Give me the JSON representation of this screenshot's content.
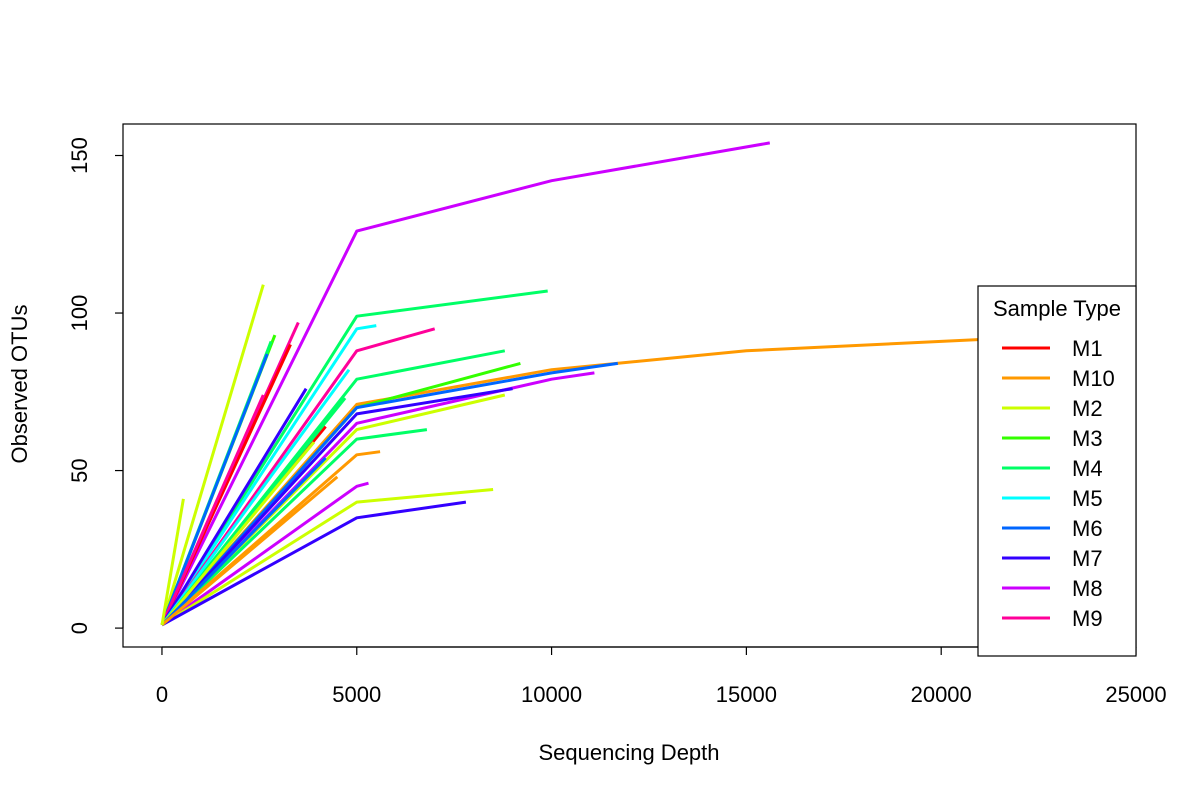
{
  "chart_data": {
    "type": "line",
    "title": "",
    "xlabel": "Sequencing Depth",
    "ylabel": "Observed OTUs",
    "xlim": [
      -1000,
      25000
    ],
    "ylim": [
      -6,
      160
    ],
    "x_ticks": [
      0,
      5000,
      10000,
      15000,
      20000,
      25000
    ],
    "x_tick_labels": [
      "0",
      "5000",
      "10000",
      "15000",
      "20000",
      "25000"
    ],
    "y_ticks": [
      0,
      50,
      100,
      150
    ],
    "y_tick_labels": [
      "0",
      "50",
      "100",
      "150"
    ],
    "grid": false,
    "legend": {
      "title": "Sample Type",
      "placement": "right",
      "entries": [
        "M1",
        "M10",
        "M2",
        "M3",
        "M4",
        "M5",
        "M6",
        "M7",
        "M8",
        "M9"
      ]
    },
    "group_colors": {
      "M1": "#FF0000",
      "M10": "#FF9900",
      "M2": "#CCFF00",
      "M3": "#33FF00",
      "M4": "#00FF66",
      "M5": "#00FFFF",
      "M6": "#0066FF",
      "M7": "#3300FF",
      "M8": "#CC00FF",
      "M9": "#FF0099"
    },
    "series": [
      {
        "group": "M8",
        "x": [
          0,
          5000,
          10000,
          15600
        ],
        "y": [
          1,
          126,
          142,
          154
        ]
      },
      {
        "group": "M10",
        "x": [
          0,
          5000,
          10000,
          15000,
          20000,
          25000
        ],
        "y": [
          1,
          71,
          82,
          88,
          91,
          94
        ]
      },
      {
        "group": "M4",
        "x": [
          0,
          5000,
          9900
        ],
        "y": [
          1,
          99,
          107
        ]
      },
      {
        "group": "M5",
        "x": [
          0,
          5000,
          5500
        ],
        "y": [
          1,
          95,
          96
        ]
      },
      {
        "group": "M9",
        "x": [
          0,
          5000,
          7000
        ],
        "y": [
          1,
          88,
          95
        ]
      },
      {
        "group": "M4",
        "x": [
          0,
          5000,
          8800
        ],
        "y": [
          1,
          79,
          88
        ]
      },
      {
        "group": "M3",
        "x": [
          0,
          5000,
          9200
        ],
        "y": [
          1,
          70,
          84
        ]
      },
      {
        "group": "M6",
        "x": [
          0,
          5000,
          10000,
          11700
        ],
        "y": [
          1,
          70,
          81,
          84
        ]
      },
      {
        "group": "M8",
        "x": [
          0,
          5000,
          10000,
          11100
        ],
        "y": [
          1,
          65,
          79,
          81
        ]
      },
      {
        "group": "M7",
        "x": [
          0,
          5000,
          9000
        ],
        "y": [
          1,
          68,
          76
        ]
      },
      {
        "group": "M2",
        "x": [
          0,
          5000,
          8800
        ],
        "y": [
          1,
          63,
          74
        ]
      },
      {
        "group": "M4",
        "x": [
          0,
          5000,
          6800
        ],
        "y": [
          1,
          60,
          63
        ]
      },
      {
        "group": "M10",
        "x": [
          0,
          5000,
          5600
        ],
        "y": [
          1,
          55,
          56
        ]
      },
      {
        "group": "M8",
        "x": [
          0,
          5000,
          5300
        ],
        "y": [
          1,
          45,
          46
        ]
      },
      {
        "group": "M2",
        "x": [
          0,
          5000,
          8500
        ],
        "y": [
          1,
          40,
          44
        ]
      },
      {
        "group": "M7",
        "x": [
          0,
          5000,
          7800
        ],
        "y": [
          1,
          35,
          40
        ]
      },
      {
        "group": "M2",
        "x": [
          0,
          2600
        ],
        "y": [
          1,
          109
        ]
      },
      {
        "group": "M3",
        "x": [
          0,
          2900
        ],
        "y": [
          1,
          93
        ]
      },
      {
        "group": "M4",
        "x": [
          0,
          2800
        ],
        "y": [
          1,
          91
        ]
      },
      {
        "group": "M6",
        "x": [
          0,
          2700
        ],
        "y": [
          1,
          87
        ]
      },
      {
        "group": "M9",
        "x": [
          0,
          3500
        ],
        "y": [
          1,
          97
        ]
      },
      {
        "group": "M1",
        "x": [
          0,
          3300
        ],
        "y": [
          1,
          90
        ]
      },
      {
        "group": "M9",
        "x": [
          0,
          2600
        ],
        "y": [
          1,
          74
        ]
      },
      {
        "group": "M7",
        "x": [
          0,
          3700
        ],
        "y": [
          1,
          76
        ]
      },
      {
        "group": "M5",
        "x": [
          0,
          4800
        ],
        "y": [
          1,
          82
        ]
      },
      {
        "group": "M1",
        "x": [
          0,
          4200
        ],
        "y": [
          1,
          64
        ]
      },
      {
        "group": "M4",
        "x": [
          0,
          4700
        ],
        "y": [
          1,
          73
        ]
      },
      {
        "group": "M2",
        "x": [
          0,
          3900
        ],
        "y": [
          1,
          59
        ]
      },
      {
        "group": "M6",
        "x": [
          0,
          4200
        ],
        "y": [
          1,
          54
        ]
      },
      {
        "group": "M10",
        "x": [
          0,
          4500
        ],
        "y": [
          1,
          48
        ]
      },
      {
        "group": "M2",
        "x": [
          0,
          550
        ],
        "y": [
          1,
          41
        ]
      }
    ]
  }
}
